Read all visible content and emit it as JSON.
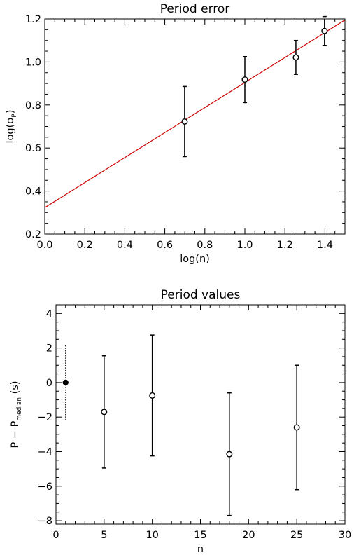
{
  "chart_data": [
    {
      "type": "scatter",
      "title": "Period error",
      "xlabel": "log(n)",
      "ylabel": {
        "main": "log(σ",
        "sub": "P",
        "close": ")"
      },
      "xlim": [
        0.0,
        1.5
      ],
      "ylim": [
        0.2,
        1.2
      ],
      "xticks": [
        "0.0",
        "0.2",
        "0.4",
        "0.6",
        "0.8",
        "1.0",
        "1.2",
        "1.4"
      ],
      "yticks": [
        "0.2",
        "0.4",
        "0.6",
        "0.8",
        "1.0",
        "1.2"
      ],
      "series": [
        {
          "marker": "open-circle",
          "points": [
            {
              "x": 0.699,
              "y": 0.723,
              "err": 0.163
            },
            {
              "x": 1.0,
              "y": 0.918,
              "err": 0.107
            },
            {
              "x": 1.255,
              "y": 1.021,
              "err": 0.079
            },
            {
              "x": 1.398,
              "y": 1.144,
              "err": 0.067
            }
          ]
        }
      ],
      "fit_line": {
        "x": [
          0.0,
          1.5
        ],
        "y": [
          0.323,
          1.195
        ],
        "color": "#cc0000"
      }
    },
    {
      "type": "scatter",
      "title": "Period values",
      "xlabel": "n",
      "ylabel": {
        "main": "P − P",
        "sub": "median",
        "close": " (s)"
      },
      "xlim": [
        0,
        30
      ],
      "ylim": [
        -8.2,
        4.5
      ],
      "xticks": [
        "0",
        "5",
        "10",
        "15",
        "20",
        "25",
        "30"
      ],
      "yticks": [
        "−8",
        "−6",
        "−4",
        "−2",
        "0",
        "2",
        "4"
      ],
      "series": [
        {
          "marker": "filled-circle",
          "errstyle": "dotted",
          "points": [
            {
              "x": 1,
              "y": 0.0,
              "err": 2.15
            }
          ]
        },
        {
          "marker": "open-circle",
          "errstyle": "solid",
          "points": [
            {
              "x": 5,
              "y": -1.7,
              "err": 3.25
            },
            {
              "x": 10,
              "y": -0.75,
              "err": 3.5
            },
            {
              "x": 18,
              "y": -4.15,
              "err": 3.55
            },
            {
              "x": 25,
              "y": -2.6,
              "err": 3.6
            }
          ]
        }
      ]
    }
  ]
}
